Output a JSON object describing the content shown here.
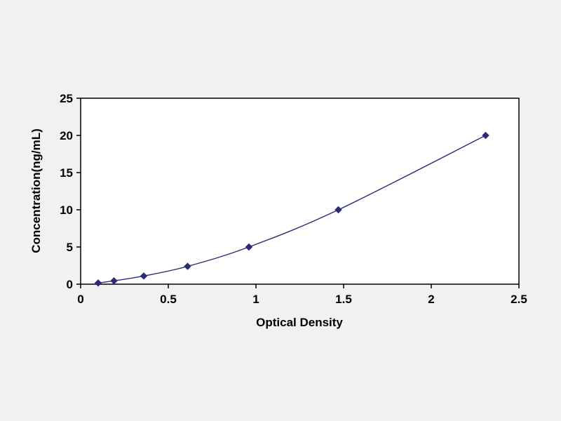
{
  "chart_data": {
    "type": "line",
    "title": "",
    "xlabel": "Optical Density",
    "ylabel": "Concentration(ng/mL)",
    "x": [
      0.1,
      0.19,
      0.36,
      0.61,
      0.96,
      1.47,
      2.31
    ],
    "y": [
      0.16,
      0.45,
      1.1,
      2.4,
      5,
      10,
      20
    ],
    "xlim": [
      0,
      2.5
    ],
    "ylim": [
      0,
      25
    ],
    "x_ticks": [
      "0",
      "0.5",
      "1",
      "1.5",
      "2",
      "2.5"
    ],
    "x_tick_values": [
      0,
      0.5,
      1,
      1.5,
      2,
      2.5
    ],
    "y_ticks": [
      "0",
      "5",
      "10",
      "15",
      "20",
      "25"
    ],
    "y_tick_values": [
      0,
      5,
      10,
      15,
      20,
      25
    ],
    "grid": false,
    "legend": "none",
    "marker": "diamond",
    "line_color": "#2b2b78"
  },
  "colors": {
    "background": "#f2f1f1",
    "plot_background": "#ffffff",
    "axis": "#000000"
  }
}
